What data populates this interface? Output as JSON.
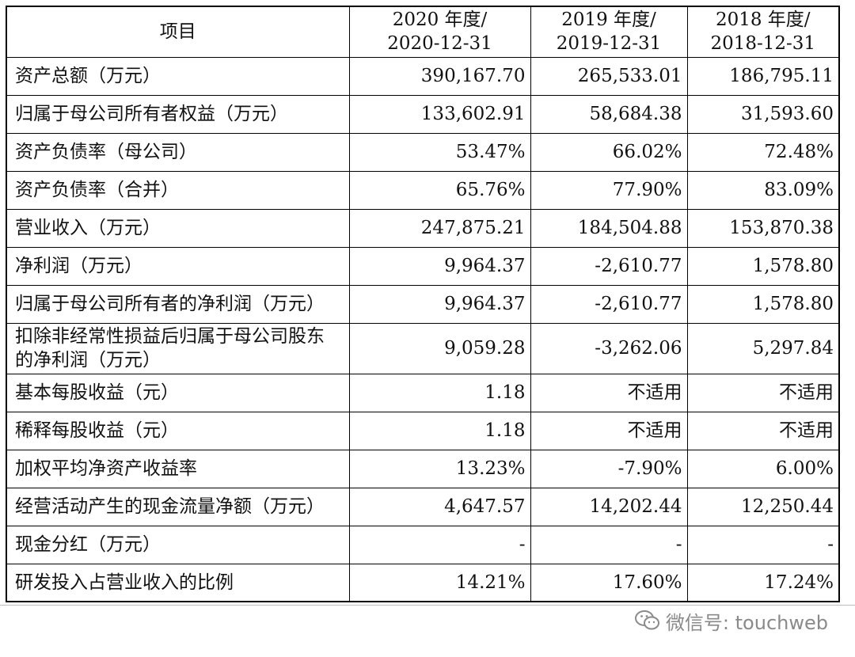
{
  "table": {
    "headers": [
      "项目",
      "2020 年度/",
      "2020-12-31",
      "2019 年度/",
      "2019-12-31",
      "2018 年度/",
      "2018-12-31"
    ],
    "rows": [
      {
        "label": "资产总额（万元）",
        "v2020": "390,167.70",
        "v2019": "265,533.01",
        "v2018": "186,795.11"
      },
      {
        "label": "归属于母公司所有者权益（万元）",
        "v2020": "133,602.91",
        "v2019": "58,684.38",
        "v2018": "31,593.60"
      },
      {
        "label": "资产负债率（母公司）",
        "v2020": "53.47%",
        "v2019": "66.02%",
        "v2018": "72.48%"
      },
      {
        "label": "资产负债率（合并）",
        "v2020": "65.76%",
        "v2019": "77.90%",
        "v2018": "83.09%"
      },
      {
        "label": "营业收入（万元）",
        "v2020": "247,875.21",
        "v2019": "184,504.88",
        "v2018": "153,870.38"
      },
      {
        "label": "净利润（万元）",
        "v2020": "9,964.37",
        "v2019": "-2,610.77",
        "v2018": "1,578.80"
      },
      {
        "label": "归属于母公司所有者的净利润（万元）",
        "v2020": "9,964.37",
        "v2019": "-2,610.77",
        "v2018": "1,578.80"
      },
      {
        "label": "扣除非经常性损益后归属于母公司股东的净利润（万元）",
        "v2020": "9,059.28",
        "v2019": "-3,262.06",
        "v2018": "5,297.84"
      },
      {
        "label": "基本每股收益（元）",
        "v2020": "1.18",
        "v2019": "不适用",
        "v2018": "不适用"
      },
      {
        "label": "稀释每股收益（元）",
        "v2020": "1.18",
        "v2019": "不适用",
        "v2018": "不适用"
      },
      {
        "label": "加权平均净资产收益率",
        "v2020": "13.23%",
        "v2019": "-7.90%",
        "v2018": "6.00%"
      },
      {
        "label": "经营活动产生的现金流量净额（万元）",
        "v2020": "4,647.57",
        "v2019": "14,202.44",
        "v2018": "12,250.44"
      },
      {
        "label": "现金分红（万元）",
        "v2020": "-",
        "v2019": "-",
        "v2018": "-"
      },
      {
        "label": "研发投入占营业收入的比例",
        "v2020": "14.21%",
        "v2019": "17.60%",
        "v2018": "17.24%"
      }
    ]
  },
  "watermark": {
    "text": "微信号: touchweb",
    "icon": "wechat-icon"
  },
  "colors": {
    "border": "#000000",
    "text": "#111111",
    "watermark": "#8a8a8a"
  }
}
